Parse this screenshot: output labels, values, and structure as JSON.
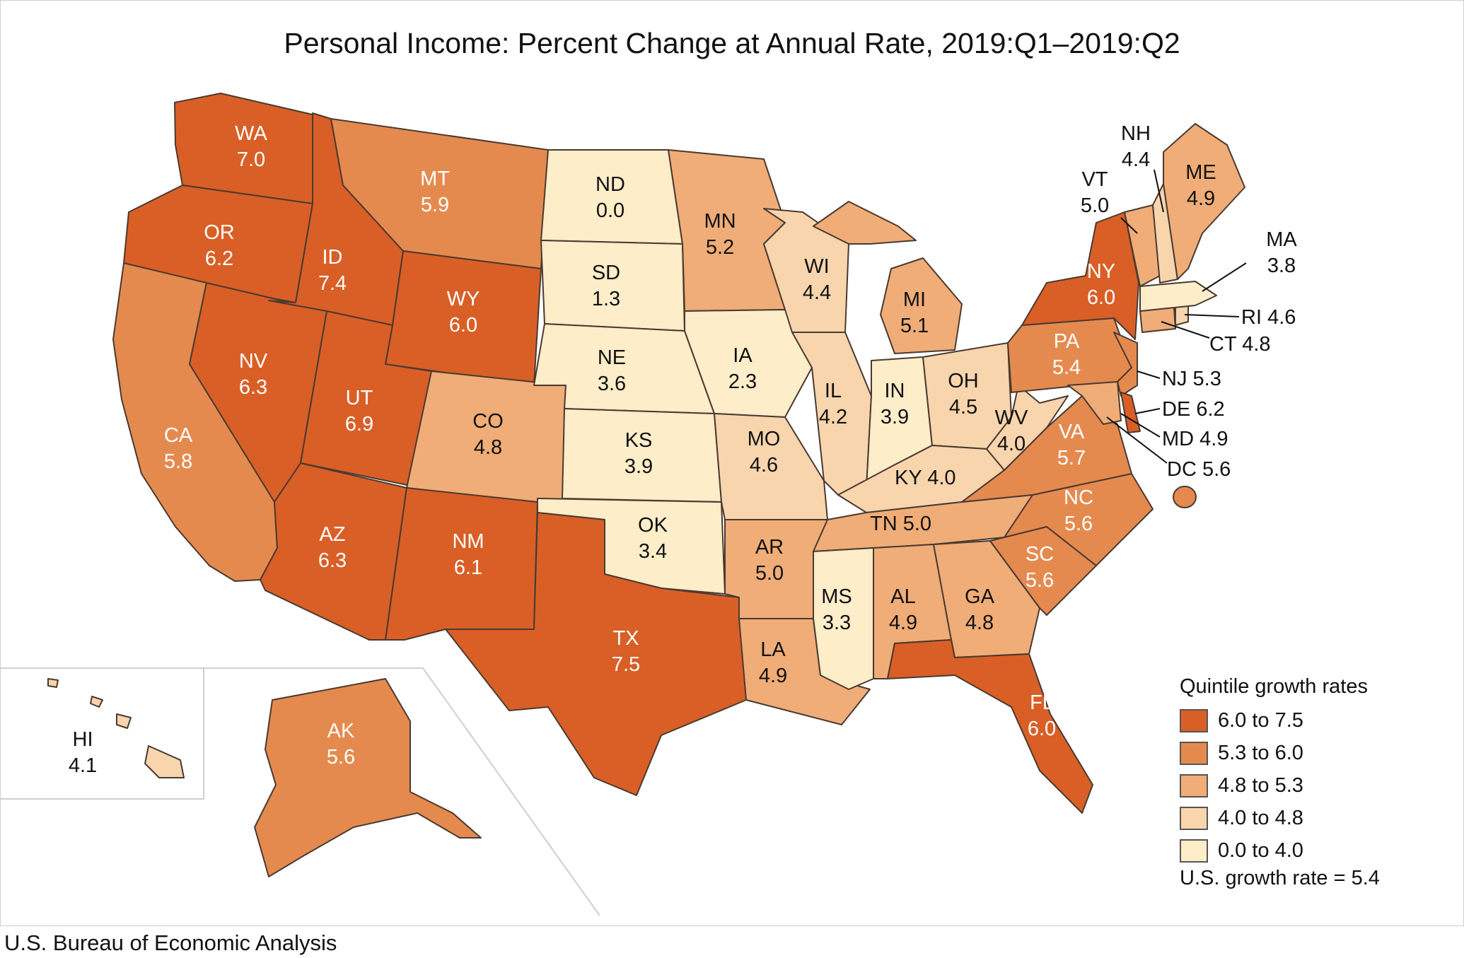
{
  "title": "Personal Income: Percent Change at Annual Rate, 2019:Q1–2019:Q2",
  "credit": "U.S. Bureau of Economic Analysis",
  "colors": {
    "q5": "#d95f27",
    "q4": "#e58a4f",
    "q3": "#f0ad78",
    "q2": "#f8d5ad",
    "q1": "#fdedc9",
    "outline": "#4a3a30",
    "label_dark": "#ffffff",
    "label_light": "#111111"
  },
  "legend": {
    "title": "Quintile growth rates",
    "items": [
      {
        "label": "6.0 to 7.5",
        "color": "#d95f27"
      },
      {
        "label": "5.3 to 6.0",
        "color": "#e58a4f"
      },
      {
        "label": "4.8 to 5.3",
        "color": "#f0ad78"
      },
      {
        "label": "4.0 to 4.8",
        "color": "#f8d5ad"
      },
      {
        "label": "0.0 to 4.0",
        "color": "#fdedc9"
      }
    ],
    "us_rate": "U.S. growth rate = 5.4"
  },
  "states": {
    "WA": {
      "abbr": "WA",
      "value": "7.0"
    },
    "OR": {
      "abbr": "OR",
      "value": "6.2"
    },
    "CA": {
      "abbr": "CA",
      "value": "5.8"
    },
    "ID": {
      "abbr": "ID",
      "value": "7.4"
    },
    "NV": {
      "abbr": "NV",
      "value": "6.3"
    },
    "MT": {
      "abbr": "MT",
      "value": "5.9"
    },
    "WY": {
      "abbr": "WY",
      "value": "6.0"
    },
    "UT": {
      "abbr": "UT",
      "value": "6.9"
    },
    "AZ": {
      "abbr": "AZ",
      "value": "6.3"
    },
    "CO": {
      "abbr": "CO",
      "value": "4.8"
    },
    "NM": {
      "abbr": "NM",
      "value": "6.1"
    },
    "ND": {
      "abbr": "ND",
      "value": "0.0"
    },
    "SD": {
      "abbr": "SD",
      "value": "1.3"
    },
    "NE": {
      "abbr": "NE",
      "value": "3.6"
    },
    "KS": {
      "abbr": "KS",
      "value": "3.9"
    },
    "OK": {
      "abbr": "OK",
      "value": "3.4"
    },
    "TX": {
      "abbr": "TX",
      "value": "7.5"
    },
    "MN": {
      "abbr": "MN",
      "value": "5.2"
    },
    "IA": {
      "abbr": "IA",
      "value": "2.3"
    },
    "MO": {
      "abbr": "MO",
      "value": "4.6"
    },
    "AR": {
      "abbr": "AR",
      "value": "5.0"
    },
    "LA": {
      "abbr": "LA",
      "value": "4.9"
    },
    "WI": {
      "abbr": "WI",
      "value": "4.4"
    },
    "IL": {
      "abbr": "IL",
      "value": "4.2"
    },
    "MI": {
      "abbr": "MI",
      "value": "5.1"
    },
    "IN": {
      "abbr": "IN",
      "value": "3.9"
    },
    "OH": {
      "abbr": "OH",
      "value": "4.5"
    },
    "KY": {
      "abbr": "KY",
      "value": "4.0"
    },
    "TN": {
      "abbr": "TN",
      "value": "5.0"
    },
    "MS": {
      "abbr": "MS",
      "value": "3.3"
    },
    "AL": {
      "abbr": "AL",
      "value": "4.9"
    },
    "GA": {
      "abbr": "GA",
      "value": "4.8"
    },
    "FL": {
      "abbr": "FL",
      "value": "6.0"
    },
    "SC": {
      "abbr": "SC",
      "value": "5.6"
    },
    "NC": {
      "abbr": "NC",
      "value": "5.6"
    },
    "VA": {
      "abbr": "VA",
      "value": "5.7"
    },
    "WV": {
      "abbr": "WV",
      "value": "4.0"
    },
    "PA": {
      "abbr": "PA",
      "value": "5.4"
    },
    "NY": {
      "abbr": "NY",
      "value": "6.0"
    },
    "NJ": {
      "abbr": "NJ",
      "value": "5.3"
    },
    "DE": {
      "abbr": "DE",
      "value": "6.2"
    },
    "MD": {
      "abbr": "MD",
      "value": "4.9"
    },
    "DC": {
      "abbr": "DC",
      "value": "5.6"
    },
    "CT": {
      "abbr": "CT",
      "value": "4.8"
    },
    "RI": {
      "abbr": "RI",
      "value": "4.6"
    },
    "MA": {
      "abbr": "MA",
      "value": "3.8"
    },
    "VT": {
      "abbr": "VT",
      "value": "5.0"
    },
    "NH": {
      "abbr": "NH",
      "value": "4.4"
    },
    "ME": {
      "abbr": "ME",
      "value": "4.9"
    },
    "AK": {
      "abbr": "AK",
      "value": "5.6"
    },
    "HI": {
      "abbr": "HI",
      "value": "4.1"
    }
  }
}
